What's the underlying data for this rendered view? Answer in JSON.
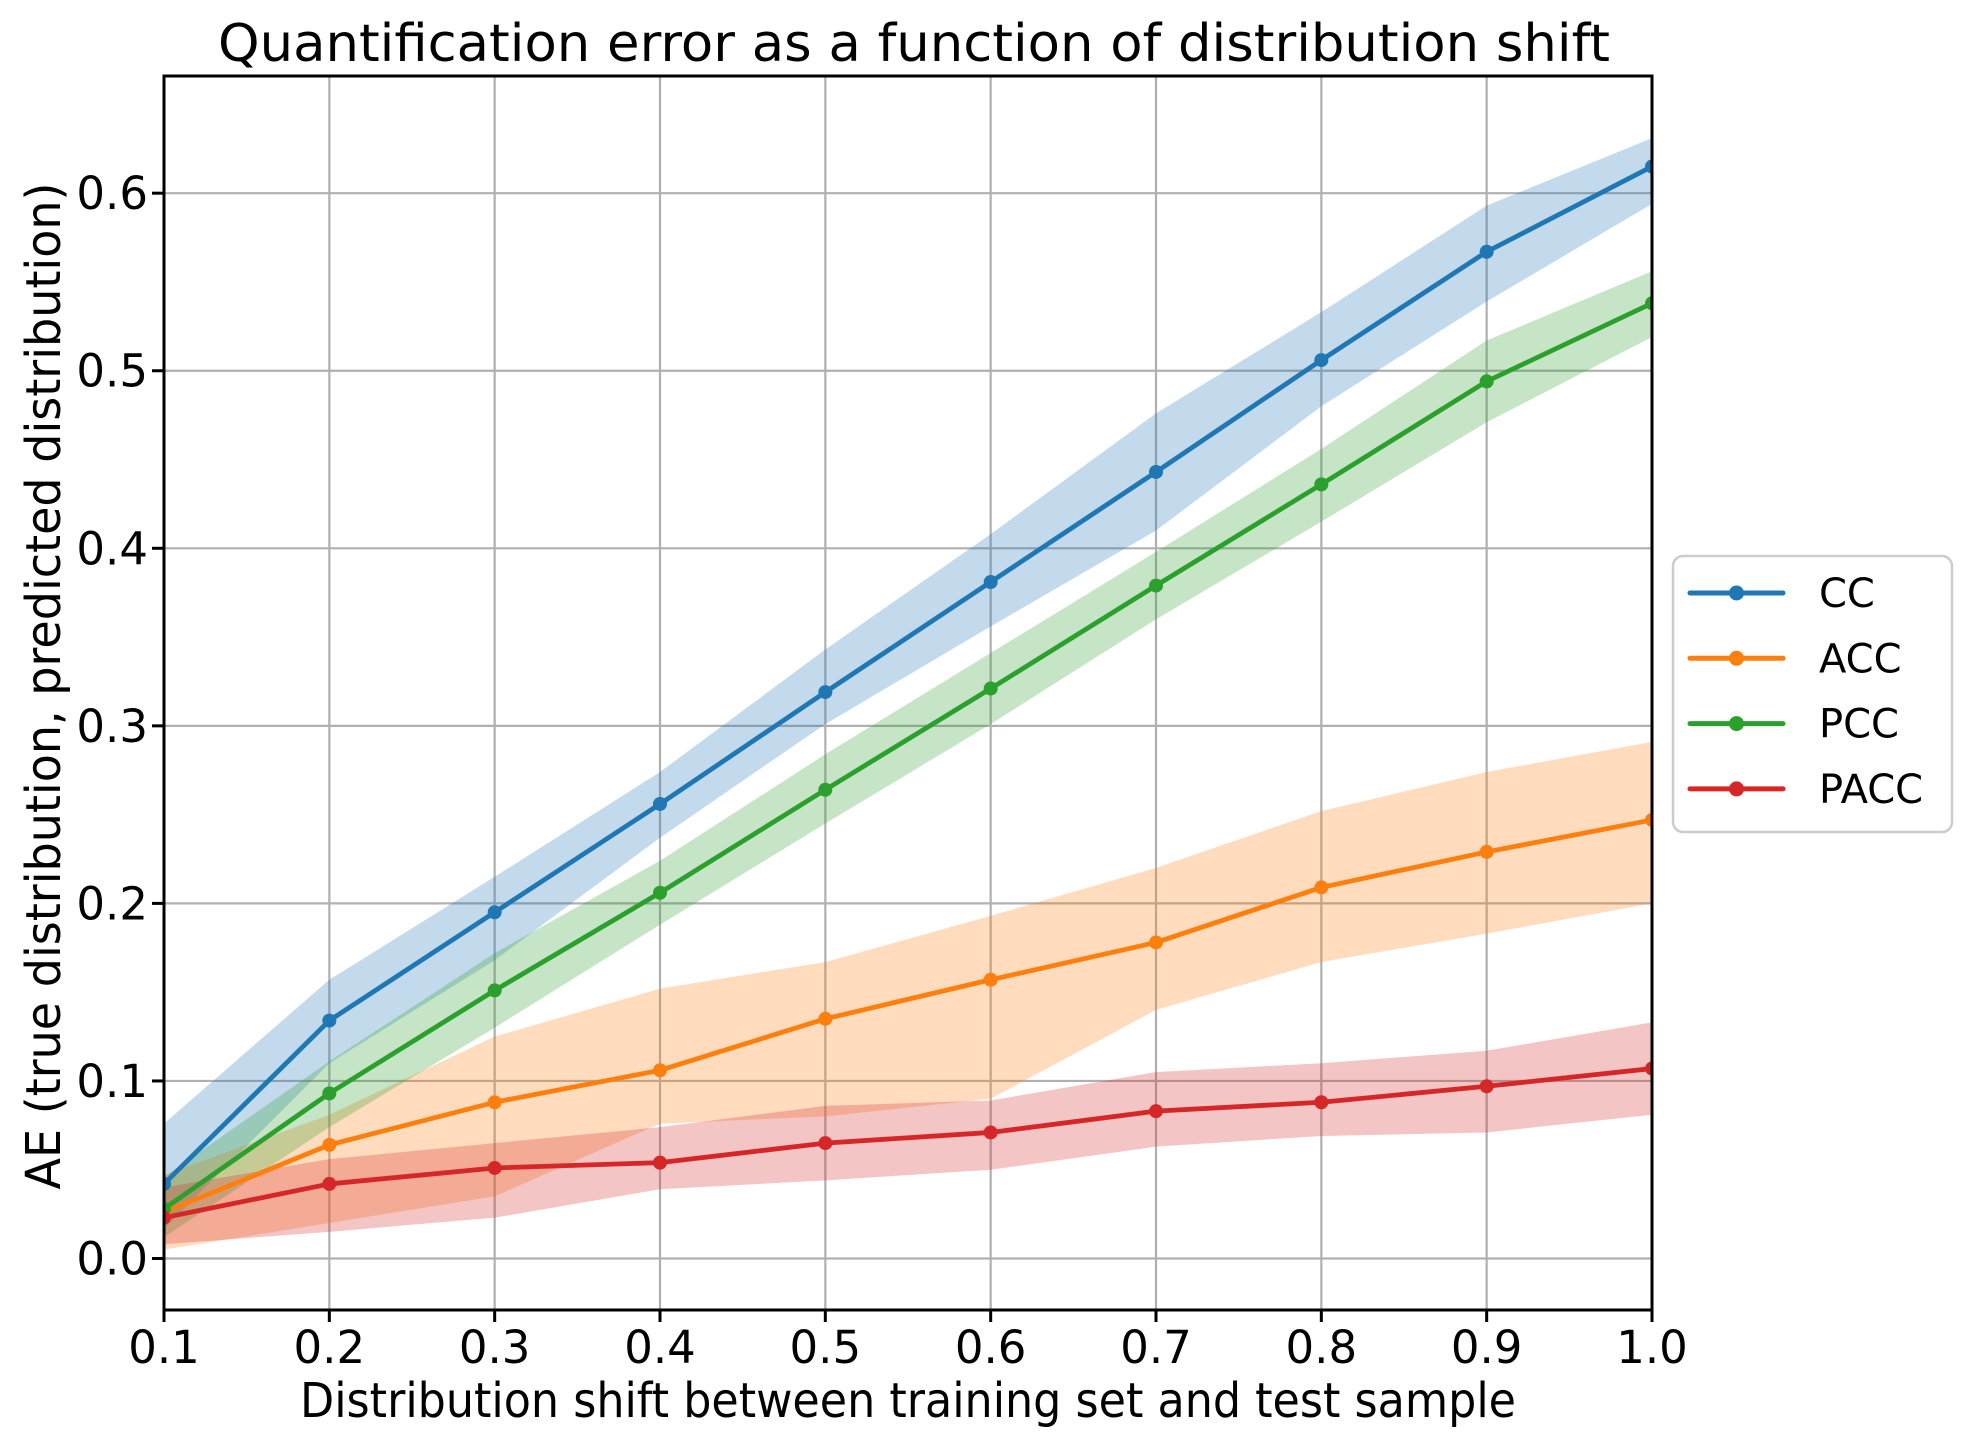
{
  "figure": {
    "background": "#ffffff",
    "grid_color": "#b0b0b0",
    "spine_color": "#000000",
    "text_color": "#000000",
    "legend_border_color": "#cccccc",
    "legend_background": "#ffffff"
  },
  "chart_data": {
    "type": "line",
    "title": "Quantification error as a function of distribution shift",
    "xlabel": "Distribution shift between training set and test sample",
    "ylabel": "AE (true distribution, predicted distribution)",
    "grid": true,
    "legend_position": "outside-right",
    "x": [
      0.1,
      0.2,
      0.3,
      0.4,
      0.5,
      0.6,
      0.7,
      0.8,
      0.9,
      1.0
    ],
    "xlim": [
      0.1,
      1.0
    ],
    "ylim": [
      -0.029,
      0.666
    ],
    "xticks": [
      "0.1",
      "0.2",
      "0.3",
      "0.4",
      "0.5",
      "0.6",
      "0.7",
      "0.8",
      "0.9",
      "1.0"
    ],
    "yticks": [
      "0.0",
      "0.1",
      "0.2",
      "0.3",
      "0.4",
      "0.5",
      "0.6"
    ],
    "series": [
      {
        "name": "CC",
        "color": "#1f77b4",
        "marker": "circle",
        "values": [
          0.042,
          0.134,
          0.195,
          0.256,
          0.319,
          0.381,
          0.443,
          0.506,
          0.567,
          0.615
        ],
        "band_lower": [
          0.017,
          0.11,
          0.168,
          0.237,
          0.301,
          0.356,
          0.41,
          0.48,
          0.539,
          0.594
        ],
        "band_upper": [
          0.076,
          0.157,
          0.215,
          0.274,
          0.343,
          0.408,
          0.476,
          0.533,
          0.593,
          0.631
        ]
      },
      {
        "name": "ACC",
        "color": "#ff7f0e",
        "marker": "circle",
        "values": [
          0.026,
          0.064,
          0.088,
          0.106,
          0.135,
          0.157,
          0.178,
          0.209,
          0.229,
          0.247
        ],
        "band_lower": [
          0.005,
          0.02,
          0.035,
          0.076,
          0.08,
          0.09,
          0.14,
          0.167,
          0.183,
          0.2
        ],
        "band_upper": [
          0.047,
          0.081,
          0.125,
          0.152,
          0.167,
          0.193,
          0.22,
          0.252,
          0.274,
          0.291
        ]
      },
      {
        "name": "PCC",
        "color": "#2ca02c",
        "marker": "circle",
        "values": [
          0.028,
          0.093,
          0.151,
          0.206,
          0.264,
          0.321,
          0.379,
          0.436,
          0.494,
          0.538
        ],
        "band_lower": [
          0.012,
          0.074,
          0.13,
          0.188,
          0.245,
          0.301,
          0.36,
          0.415,
          0.471,
          0.519
        ],
        "band_upper": [
          0.046,
          0.111,
          0.172,
          0.224,
          0.284,
          0.341,
          0.398,
          0.456,
          0.517,
          0.556
        ]
      },
      {
        "name": "PACC",
        "color": "#d62728",
        "marker": "circle",
        "values": [
          0.023,
          0.042,
          0.051,
          0.054,
          0.065,
          0.071,
          0.083,
          0.088,
          0.097,
          0.107
        ],
        "band_lower": [
          0.008,
          0.015,
          0.023,
          0.039,
          0.044,
          0.05,
          0.063,
          0.069,
          0.071,
          0.081
        ],
        "band_upper": [
          0.04,
          0.056,
          0.065,
          0.074,
          0.086,
          0.089,
          0.105,
          0.11,
          0.117,
          0.133
        ]
      }
    ]
  }
}
